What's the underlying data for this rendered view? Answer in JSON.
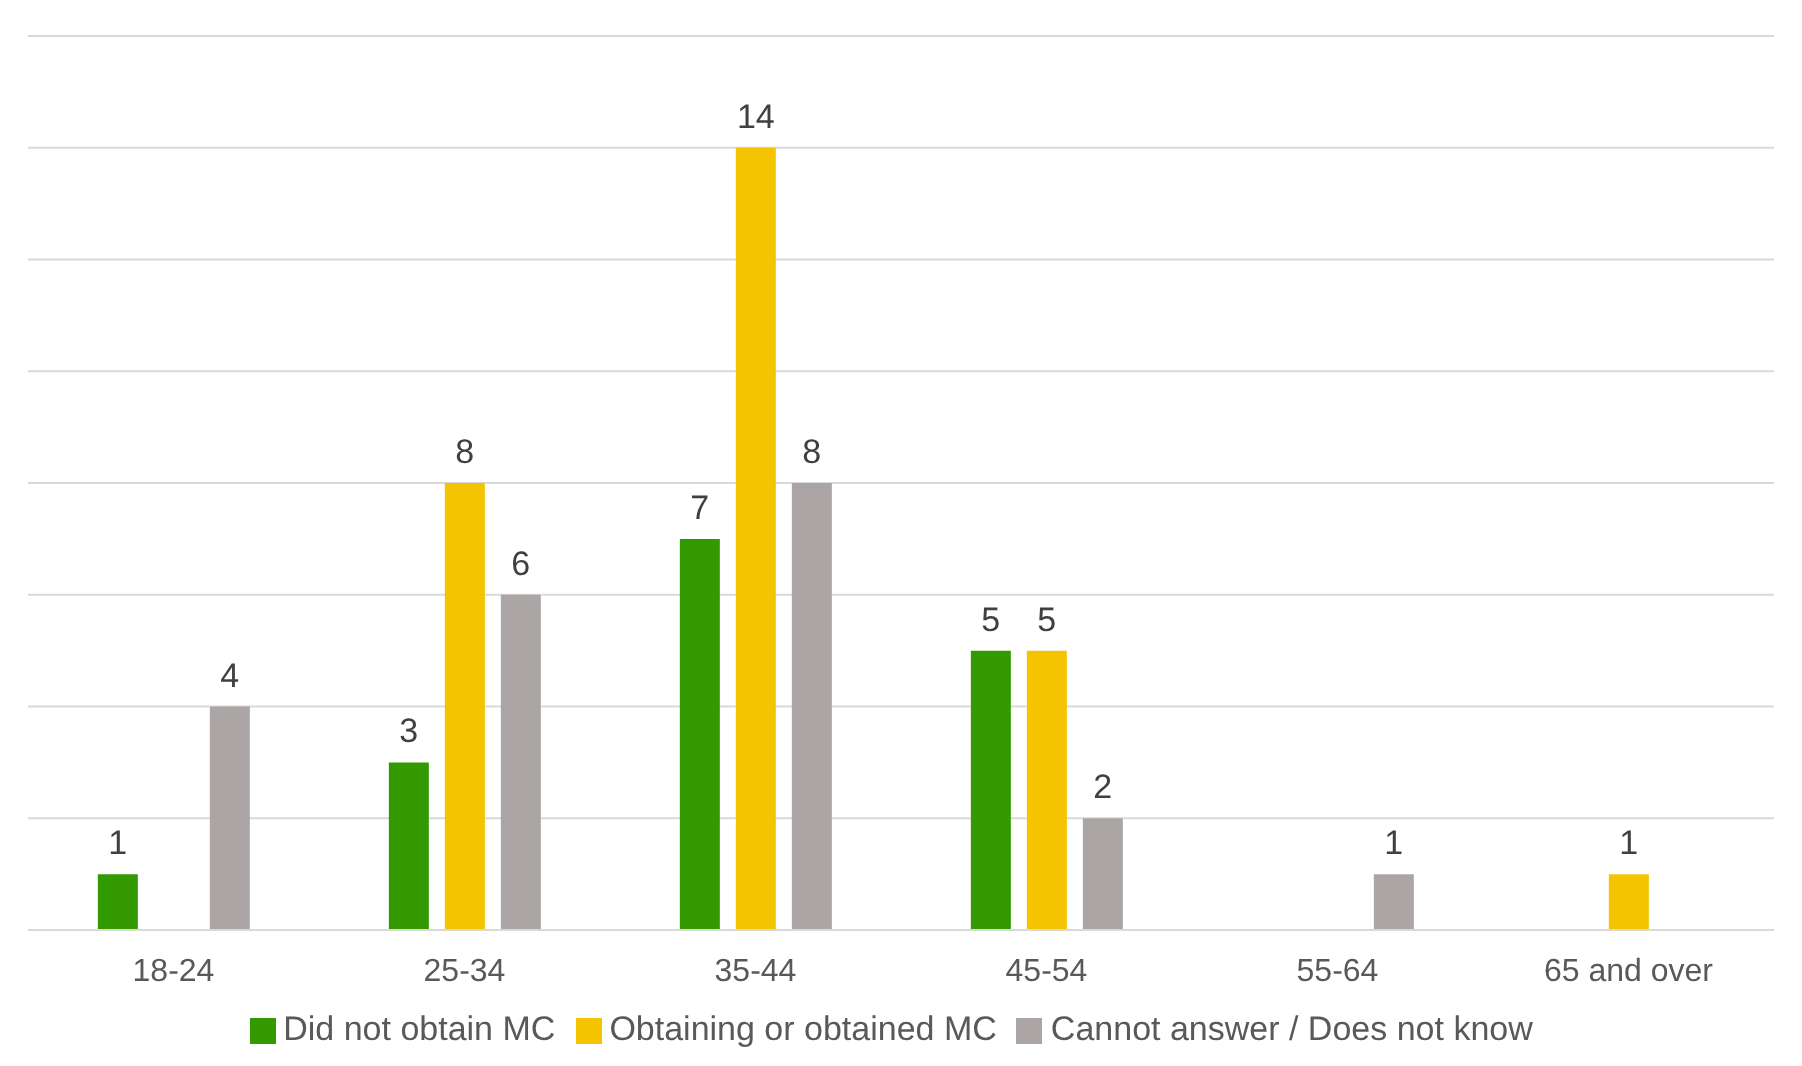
{
  "chart_data": {
    "type": "bar",
    "categories": [
      "18-24",
      "25-34",
      "35-44",
      "45-54",
      "55-64",
      "65 and over"
    ],
    "series": [
      {
        "name": "Did not obtain MC",
        "color": "#339900",
        "values": [
          1,
          3,
          7,
          5,
          null,
          null
        ]
      },
      {
        "name": "Obtaining or obtained MC",
        "color": "#f5c400",
        "values": [
          null,
          8,
          14,
          5,
          null,
          1
        ]
      },
      {
        "name": "Cannot answer / Does not know",
        "color": "#aba6a5",
        "values": [
          4,
          6,
          8,
          2,
          1,
          null
        ]
      }
    ],
    "ylim": [
      0,
      16
    ],
    "tick_labels": "x",
    "grid": "y",
    "legend": "bottom",
    "data_labels": true
  }
}
